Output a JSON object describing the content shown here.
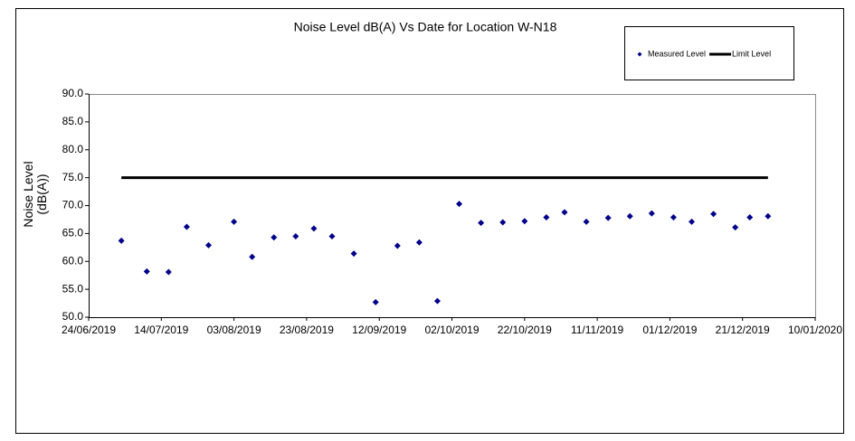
{
  "chart_data": {
    "type": "scatter",
    "title": "Noise Level dB(A) Vs Date for Location W-N18",
    "y_label": "Noise Level (dB(A))",
    "series": [
      {
        "name": "Measured Level",
        "color": "#00008b",
        "marker": "diamond",
        "x": [
          "2019-07-03",
          "2019-07-10",
          "2019-07-16",
          "2019-07-21",
          "2019-07-27",
          "2019-08-03",
          "2019-08-08",
          "2019-08-14",
          "2019-08-20",
          "2019-08-25",
          "2019-08-30",
          "2019-09-05",
          "2019-09-11",
          "2019-09-17",
          "2019-09-23",
          "2019-09-28",
          "2019-10-04",
          "2019-10-10",
          "2019-10-16",
          "2019-10-22",
          "2019-10-28",
          "2019-11-02",
          "2019-11-08",
          "2019-11-14",
          "2019-11-20",
          "2019-11-26",
          "2019-12-02",
          "2019-12-07",
          "2019-12-13",
          "2019-12-19",
          "2019-12-23",
          "2019-12-28"
        ],
        "values": [
          63.7,
          58.2,
          58.1,
          66.2,
          62.9,
          67.1,
          60.8,
          64.3,
          64.5,
          65.9,
          64.5,
          61.4,
          52.7,
          62.8,
          63.4,
          52.9,
          70.3,
          66.9,
          67.0,
          67.2,
          67.9,
          68.8,
          67.1,
          67.8,
          68.1,
          68.6,
          67.9,
          67.1,
          68.5,
          66.1,
          67.9,
          68.1
        ]
      },
      {
        "name": "Limit Level",
        "color": "#000000",
        "marker": "line",
        "x": [
          "2019-07-03",
          "2019-12-28"
        ],
        "values": [
          75,
          75
        ]
      }
    ],
    "xlim": [
      "2019-06-24",
      "2020-01-10"
    ],
    "xticks": [
      {
        "value": "2019-06-24",
        "label": "24/06/2019"
      },
      {
        "value": "2019-07-14",
        "label": "14/07/2019"
      },
      {
        "value": "2019-08-03",
        "label": "03/08/2019"
      },
      {
        "value": "2019-08-23",
        "label": "23/08/2019"
      },
      {
        "value": "2019-09-12",
        "label": "12/09/2019"
      },
      {
        "value": "2019-10-02",
        "label": "02/10/2019"
      },
      {
        "value": "2019-10-22",
        "label": "22/10/2019"
      },
      {
        "value": "2019-11-11",
        "label": "11/11/2019"
      },
      {
        "value": "2019-12-01",
        "label": "01/12/2019"
      },
      {
        "value": "2019-12-21",
        "label": "21/12/2019"
      },
      {
        "value": "2020-01-10",
        "label": "10/01/2020"
      }
    ],
    "ylim": [
      50,
      90
    ],
    "yticks": [
      {
        "value": 50,
        "label": "50.0"
      },
      {
        "value": 55,
        "label": "55.0"
      },
      {
        "value": 60,
        "label": "60.0"
      },
      {
        "value": 65,
        "label": "65.0"
      },
      {
        "value": 70,
        "label": "70.0"
      },
      {
        "value": 75,
        "label": "75.0"
      },
      {
        "value": 80,
        "label": "80.0"
      },
      {
        "value": 85,
        "label": "85.0"
      },
      {
        "value": 90,
        "label": "90.0"
      }
    ],
    "grid": false,
    "legend": "top-right"
  }
}
